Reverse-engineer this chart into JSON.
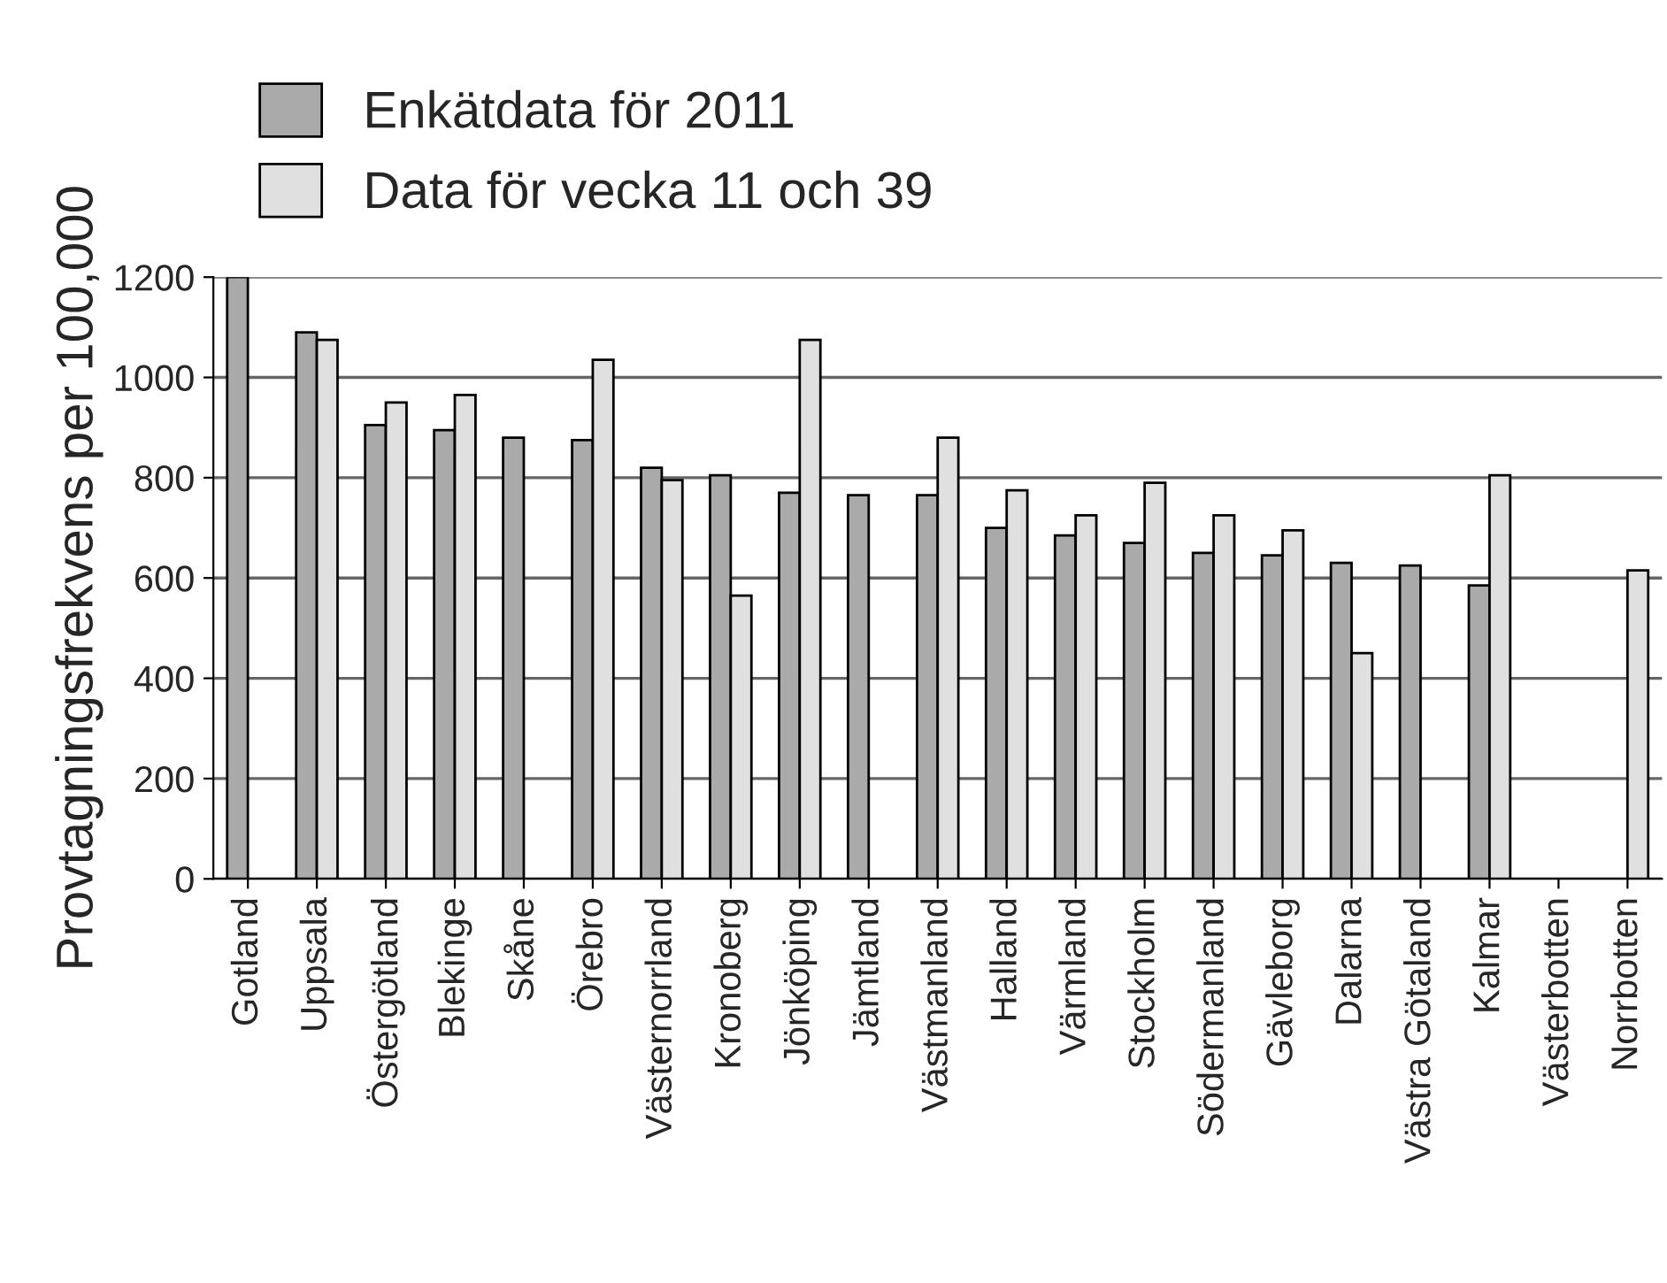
{
  "chart_data": {
    "type": "bar",
    "ylabel": "Provtagningsfrekvens per 100,000",
    "categories": [
      "Gotland",
      "Uppsala",
      "Östergötland",
      "Blekinge",
      "Skåne",
      "Örebro",
      "Västernorrland",
      "Kronoberg",
      "Jönköping",
      "Jämtland",
      "Västmanland",
      "Halland",
      "Värmland",
      "Stockholm",
      "Södermanland",
      "Gävleborg",
      "Dalarna",
      "Västra Götaland",
      "Kalmar",
      "Västerbotten",
      "Norrbotten"
    ],
    "series": [
      {
        "name": "Enkätdata för 2011",
        "color": "#aaaaaa",
        "values": [
          1200,
          1090,
          905,
          895,
          880,
          875,
          820,
          805,
          770,
          765,
          765,
          700,
          685,
          670,
          650,
          645,
          630,
          625,
          585,
          null,
          null
        ]
      },
      {
        "name": "Data för vecka 11 och 39",
        "color": "#e0e0e0",
        "values": [
          null,
          1075,
          950,
          965,
          null,
          1035,
          795,
          565,
          1075,
          null,
          880,
          775,
          725,
          790,
          725,
          695,
          450,
          null,
          805,
          null,
          615
        ]
      }
    ],
    "ylim": [
      0,
      1200
    ],
    "yticks": [
      0,
      200,
      400,
      600,
      800,
      1000,
      1200
    ],
    "grid": "y",
    "legend": "top left"
  }
}
